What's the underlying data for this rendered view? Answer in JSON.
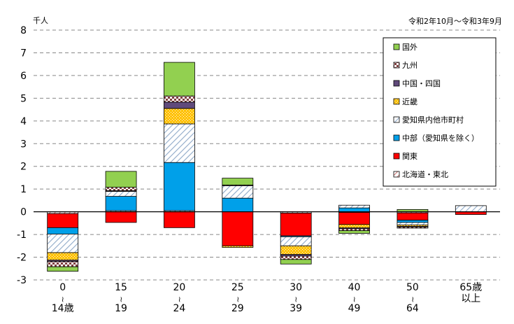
{
  "chart_data": {
    "type": "bar",
    "stacked": true,
    "unit_label": "千人",
    "period": "令和2年10月～令和3年9月",
    "ylim": [
      -3,
      8
    ],
    "yticks": [
      -3,
      -2,
      -1,
      0,
      1,
      2,
      3,
      4,
      5,
      6,
      7,
      8
    ],
    "grid": true,
    "legend_position": "top-right",
    "categories": [
      {
        "top": "0",
        "bottom": "14歳"
      },
      {
        "top": "15",
        "bottom": "19"
      },
      {
        "top": "20",
        "bottom": "24"
      },
      {
        "top": "25",
        "bottom": "29"
      },
      {
        "top": "30",
        "bottom": "39"
      },
      {
        "top": "40",
        "bottom": "49"
      },
      {
        "top": "50",
        "bottom": "64"
      },
      {
        "top": "65歳",
        "bottom": "以上"
      }
    ],
    "series": [
      {
        "name": "北海道・東北",
        "color": "#ffffff",
        "pattern": "hatch-red",
        "values": [
          -0.08,
          0.05,
          0.05,
          0.0,
          -0.06,
          -0.03,
          -0.05,
          0.0
        ]
      },
      {
        "name": "関東",
        "color": "#ff0000",
        "pattern": "solid",
        "values": [
          -0.62,
          -0.47,
          -0.7,
          -1.5,
          -1.0,
          -0.53,
          -0.32,
          -0.12
        ]
      },
      {
        "name": "中部（愛知県を除く）",
        "color": "#00a0e9",
        "pattern": "solid",
        "values": [
          -0.28,
          0.63,
          2.12,
          0.6,
          -0.04,
          0.17,
          -0.1,
          0.0
        ]
      },
      {
        "name": "愛知県内他市町村",
        "color": "#ffffff",
        "pattern": "hatch-blue",
        "values": [
          -0.82,
          0.22,
          1.7,
          0.55,
          -0.4,
          0.12,
          -0.11,
          0.27
        ]
      },
      {
        "name": "近畿",
        "color": "#ffc000",
        "pattern": "dots",
        "values": [
          -0.33,
          0.0,
          0.68,
          -0.07,
          -0.38,
          -0.15,
          -0.06,
          0.0
        ]
      },
      {
        "name": "中国・四国",
        "color": "#604a7b",
        "pattern": "solid",
        "values": [
          -0.06,
          0.03,
          0.28,
          0.0,
          -0.07,
          -0.04,
          -0.03,
          0.0
        ]
      },
      {
        "name": "九州",
        "color": "#ffffff",
        "pattern": "checker",
        "values": [
          -0.23,
          0.15,
          0.27,
          0.03,
          -0.15,
          -0.08,
          -0.05,
          0.0
        ]
      },
      {
        "name": "国外",
        "color": "#92d050",
        "pattern": "solid",
        "values": [
          -0.2,
          0.7,
          1.48,
          0.3,
          -0.2,
          -0.12,
          0.1,
          0.0
        ]
      }
    ],
    "legend_order": [
      "国外",
      "九州",
      "中国・四国",
      "近畿",
      "愛知県内他市町村",
      "中部（愛知県を除く）",
      "関東",
      "北海道・東北"
    ]
  }
}
